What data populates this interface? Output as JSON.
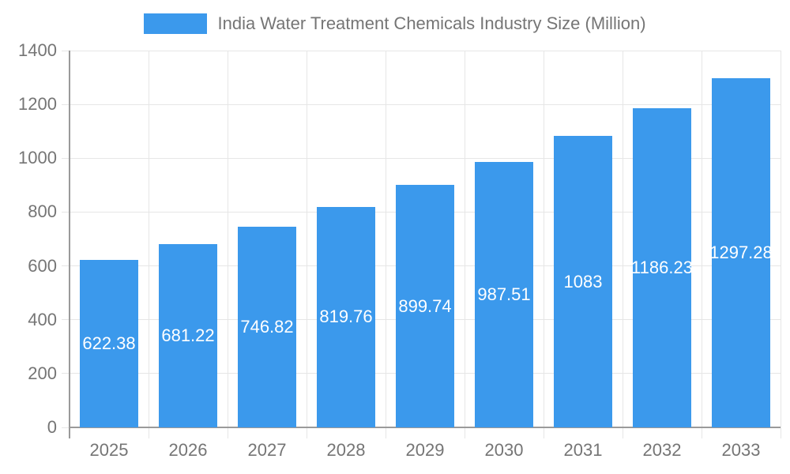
{
  "legend": {
    "label": "India Water Treatment Chemicals Industry Size (Million)"
  },
  "chart_data": {
    "type": "bar",
    "title": "India Water Treatment Chemicals Industry Size (Million)",
    "categories": [
      "2025",
      "2026",
      "2027",
      "2028",
      "2029",
      "2030",
      "2031",
      "2032",
      "2033"
    ],
    "values": [
      622.38,
      681.22,
      746.82,
      819.76,
      899.74,
      987.51,
      1083,
      1186.23,
      1297.28
    ],
    "value_labels": [
      "622.38",
      "681.22",
      "746.82",
      "819.76",
      "899.74",
      "987.51",
      "1083",
      "1186.23",
      "1297.28"
    ],
    "xlabel": "",
    "ylabel": "",
    "ylim": [
      0,
      1400
    ],
    "yticks": [
      0,
      200,
      400,
      600,
      800,
      1000,
      1200,
      1400
    ],
    "grid": true,
    "legend_position": "top",
    "colors": {
      "bar": "#3b99ec",
      "grid": "#e6e6e6",
      "axis": "#9a9a9a",
      "tick_text": "#757575",
      "value_text": "#ffffff",
      "background": "#ffffff"
    }
  }
}
